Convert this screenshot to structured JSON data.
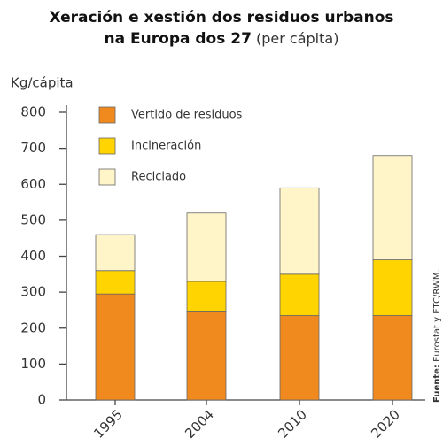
{
  "chart_data": {
    "type": "stacked-bar",
    "title": [
      "Xeración e xestión dos residuos urbanos",
      "na Europa dos 27"
    ],
    "subtitle": "(per cápita)",
    "y_label": "Kg/cápita",
    "source_label": "Fuente:",
    "source": "Eurostat y ETC/RWM.",
    "categories": [
      "1995",
      "2004",
      "2010",
      "2020"
    ],
    "series": [
      {
        "name": "Vertido de residuos",
        "color": "#f08a1e",
        "values": [
          295,
          245,
          235,
          235
        ]
      },
      {
        "name": "Incineración",
        "color": "#ffd400",
        "values": [
          65,
          85,
          115,
          155
        ]
      },
      {
        "name": "Reciclado",
        "color": "#fff5c8",
        "values": [
          100,
          190,
          240,
          290
        ]
      }
    ],
    "ylim": [
      0,
      800
    ],
    "yticks": [
      0,
      100,
      200,
      300,
      400,
      500,
      600,
      700,
      800
    ]
  }
}
